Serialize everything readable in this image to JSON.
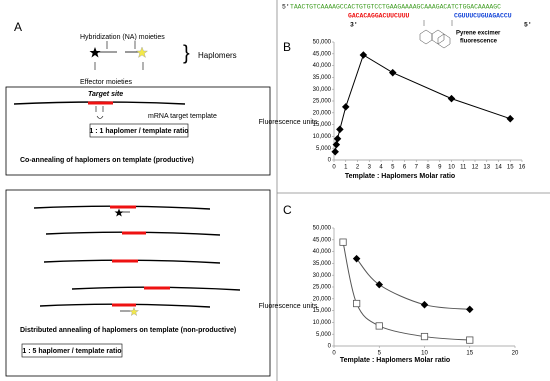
{
  "panel_a": {
    "label": "A",
    "hybridization": "Hybridization (NA) moieties",
    "haplomers": "Haplomers",
    "effector": "Effector moieties",
    "target_site": "Target site",
    "mrna": "mRNA target template",
    "ratio_1": "1 : 1 haplomer / template ratio",
    "caption_1": "Co-annealing of haplomers on template (productive)",
    "caption_2": "Distributed annealing of haplomers on template (non-productive)",
    "ratio_2": "1 : 5 haplomer / template ratio"
  },
  "sequence": {
    "five_prime": "5'",
    "target": "TAACTGTCAAAAGCCACTGTGTCCTGAAGAAAAGCAAAGACATCTGGACAAAAGC",
    "probe_red": "GACACAGGACUUCUUU",
    "probe_blue": "CGUUUCUGUAGACCU",
    "three_prime": "3'",
    "five_prime_end": "5'",
    "pyrene_1": "Pyrene excimer",
    "pyrene_2": "fluorescence"
  },
  "chart_data": [
    {
      "type": "line",
      "panel_label": "B",
      "ylabel": "Fluorescence units",
      "xlabel": "Template : Haplomers Molar ratio",
      "xlim": [
        0,
        16
      ],
      "xticks": [
        0,
        1,
        2,
        3,
        4,
        5,
        6,
        7,
        8,
        9,
        10,
        11,
        12,
        13,
        14,
        15,
        16
      ],
      "ylim": [
        0,
        50000
      ],
      "yticks": [
        0,
        {
          "value": 5000,
          "label": "5,000"
        },
        {
          "value": 10000,
          "label": "10,000"
        },
        {
          "value": 15000,
          "label": "15,000"
        },
        {
          "value": 20000,
          "label": "20,000"
        },
        {
          "value": 25000,
          "label": "25,000"
        },
        {
          "value": 30000,
          "label": "30,000"
        },
        {
          "value": 35000,
          "label": "35,000"
        },
        {
          "value": 40000,
          "label": "40,000"
        },
        {
          "value": 45000,
          "label": "45,000"
        },
        {
          "value": 50000,
          "label": "50,000"
        }
      ],
      "grid": false,
      "series": [
        {
          "color": "#000000",
          "marker": "diamond",
          "marker_fill": "#000000",
          "line_style": "straight",
          "x": [
            0.1,
            0.2,
            0.3,
            0.5,
            1,
            2.5,
            5,
            10,
            15
          ],
          "values": [
            3500,
            6500,
            9000,
            13000,
            22500,
            44500,
            37000,
            26000,
            17500
          ]
        }
      ]
    },
    {
      "type": "line",
      "panel_label": "C",
      "ylabel": "Fluorescence units",
      "xlabel": "Template : Haplomers Molar ratio",
      "xlim": [
        0,
        20
      ],
      "xticks": [
        0,
        5,
        10,
        15,
        20
      ],
      "ylim": [
        0,
        50000
      ],
      "yticks": [
        0,
        {
          "value": 5000,
          "label": "5,000"
        },
        {
          "value": 10000,
          "label": "10,000"
        },
        {
          "value": 15000,
          "label": "15,000"
        },
        {
          "value": 20000,
          "label": "20,000"
        },
        {
          "value": 25000,
          "label": "25,000"
        },
        {
          "value": 30000,
          "label": "30,000"
        },
        {
          "value": 35000,
          "label": "35,000"
        },
        {
          "value": 40000,
          "label": "40,000"
        },
        {
          "value": 45000,
          "label": "45,000"
        },
        {
          "value": 50000,
          "label": "50,000"
        }
      ],
      "grid": false,
      "series": [
        {
          "color": "#555555",
          "marker": "diamond",
          "marker_fill": "#000000",
          "line_style": "smooth",
          "x": [
            2.5,
            5,
            10,
            15
          ],
          "values": [
            37000,
            26000,
            17500,
            15500
          ]
        },
        {
          "color": "#555555",
          "marker": "square",
          "marker_fill": "none",
          "line_style": "smooth",
          "x": [
            1,
            2.5,
            5,
            10,
            15
          ],
          "values": [
            44000,
            18000,
            8500,
            4000,
            2500
          ]
        }
      ]
    }
  ]
}
